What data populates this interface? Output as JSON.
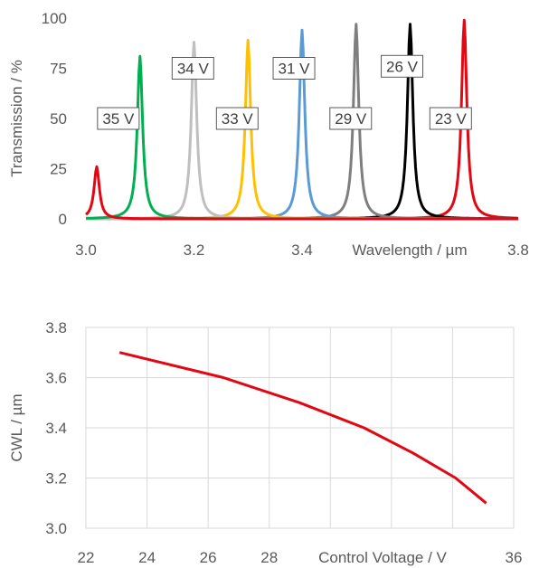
{
  "chart_data": [
    {
      "type": "line",
      "xlabel": "Wavelength / µm",
      "ylabel": "Transmission / %",
      "xlim": [
        3.0,
        3.8
      ],
      "ylim": [
        0,
        100
      ],
      "xticks": [
        "3.0",
        "3.2",
        "3.4",
        "3.8"
      ],
      "yticks": [
        "0",
        "25",
        "50",
        "75",
        "100"
      ],
      "grid": "none",
      "peak_width_um": 0.006,
      "series": [
        {
          "name": "23 V",
          "center": 3.7,
          "peak": 99,
          "color": "#e30613"
        },
        {
          "name": "26 V",
          "center": 3.6,
          "peak": 97,
          "color": "#000000"
        },
        {
          "name": "29 V",
          "center": 3.5,
          "peak": 97,
          "color": "#7f7f7f"
        },
        {
          "name": "31 V",
          "center": 3.4,
          "peak": 94,
          "color": "#5b9bd5"
        },
        {
          "name": "33 V",
          "center": 3.3,
          "peak": 89,
          "color": "#ffc000"
        },
        {
          "name": "34 V",
          "center": 3.2,
          "peak": 88,
          "color": "#bfbfbf"
        },
        {
          "name": "35 V",
          "center": 3.1,
          "peak": 81,
          "color": "#00b050"
        },
        {
          "name": "",
          "center": 3.02,
          "peak": 26,
          "color": "#e30613"
        }
      ],
      "labels": [
        {
          "text": "35 V",
          "x": 3.06,
          "y": 50
        },
        {
          "text": "34 V",
          "x": 3.198,
          "y": 75
        },
        {
          "text": "33 V",
          "x": 3.28,
          "y": 50
        },
        {
          "text": "31 V",
          "x": 3.385,
          "y": 75
        },
        {
          "text": "29 V",
          "x": 3.49,
          "y": 50
        },
        {
          "text": "26 V",
          "x": 3.585,
          "y": 76
        },
        {
          "text": "23 V",
          "x": 3.675,
          "y": 50
        }
      ]
    },
    {
      "type": "line",
      "xlabel": "Control Voltage / V",
      "ylabel": "CWL / µm",
      "xlim": [
        22,
        36
      ],
      "ylim": [
        3.0,
        3.8
      ],
      "xticks": [
        "22",
        "24",
        "26",
        "28",
        "36"
      ],
      "yticks": [
        "3.0",
        "3.2",
        "3.4",
        "3.6",
        "3.8"
      ],
      "grid": "both",
      "series": [
        {
          "name": "",
          "color": "#e30613",
          "x": [
            23.1,
            26.5,
            29.0,
            31.1,
            32.7,
            34.1,
            35.1
          ],
          "y": [
            3.7,
            3.6,
            3.5,
            3.4,
            3.3,
            3.2,
            3.1
          ]
        }
      ]
    }
  ]
}
